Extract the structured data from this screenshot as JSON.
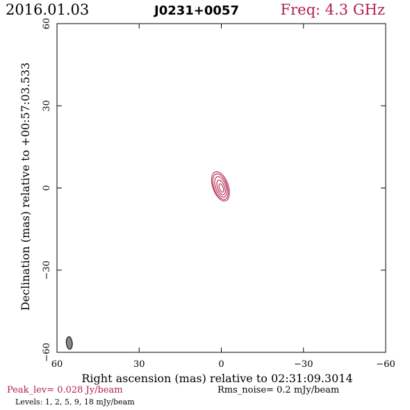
{
  "header": {
    "date": "2016.01.03",
    "source": "J0231+0057",
    "freq": "Freq: 4.3 GHz"
  },
  "footer": {
    "peak": "Peak_lev=  0.028 Jy/beam",
    "rms": "Rms_noise=  0.2 mJy/beam",
    "levels": "Levels:  1,  2,  5,  9,  18 mJy/beam"
  },
  "colors": {
    "accent": "#b0204a",
    "beam_fill": "#888888",
    "frame": "#000000"
  },
  "chart_data": {
    "type": "contour",
    "xlabel": "Right ascension (mas) relative to 02:31:09.3014",
    "ylabel": "Declination (mas) relative to +00:57:03.533",
    "xlim": [
      60,
      -60
    ],
    "ylim": [
      -60,
      60
    ],
    "x_ticks": [
      60,
      30,
      0,
      -30,
      -60
    ],
    "y_ticks": [
      60,
      30,
      0,
      -30,
      -60
    ],
    "x_tick_labels": [
      "60",
      "30",
      "0",
      "−30",
      "−60"
    ],
    "y_tick_labels": [
      "60",
      "30",
      "0",
      "−30",
      "−60"
    ],
    "contour_levels_mJy": [
      1,
      2,
      5,
      9,
      18
    ],
    "peak_Jy_per_beam": 0.028,
    "rms_mJy_per_beam": 0.2,
    "contours": [
      {
        "level": 1,
        "cx": 0.3,
        "cy": 0.6,
        "a": 5.6,
        "b": 2.8,
        "pa_deg": -20
      },
      {
        "level": 2,
        "cx": 0.3,
        "cy": 0.5,
        "a": 4.9,
        "b": 2.4,
        "pa_deg": -20
      },
      {
        "level": 5,
        "cx": 0.2,
        "cy": 0.4,
        "a": 3.9,
        "b": 1.9,
        "pa_deg": -20
      },
      {
        "level": 9,
        "cx": 0.1,
        "cy": 0.2,
        "a": 2.8,
        "b": 1.3,
        "pa_deg": -20
      },
      {
        "level": 18,
        "cx": 0.0,
        "cy": 0.0,
        "a": 1.6,
        "b": 0.7,
        "pa_deg": -20
      }
    ],
    "beam": {
      "cx": 55.5,
      "cy": -56.6,
      "a": 2.3,
      "b": 1.1,
      "pa_deg": -5
    },
    "grid": false
  }
}
